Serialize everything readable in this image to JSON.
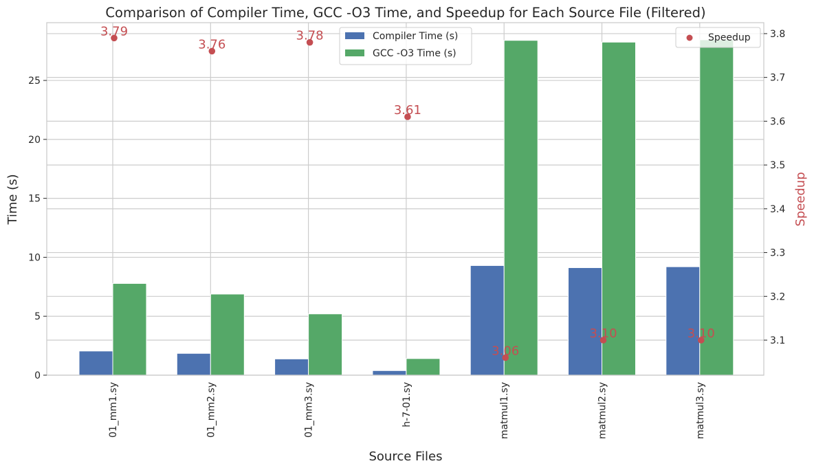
{
  "chart_data": {
    "type": "bar",
    "title": "Comparison of Compiler Time, GCC -O3 Time, and Speedup for Each Source File (Filtered)",
    "xlabel": "Source Files",
    "ylabel": "Time (s)",
    "y2label": "Speedup",
    "categories": [
      "01_mm1.sy",
      "01_mm2.sy",
      "01_mm3.sy",
      "h-7-01.sy",
      "matmul1.sy",
      "matmul2.sy",
      "matmul3.sy"
    ],
    "series": [
      {
        "name": "Compiler Time (s)",
        "color": "#4c72b0",
        "axis": "left",
        "values": [
          2.05,
          1.85,
          1.38,
          0.39,
          9.3,
          9.12,
          9.2
        ]
      },
      {
        "name": "GCC -O3 Time (s)",
        "color": "#55a868",
        "axis": "left",
        "values": [
          7.78,
          6.88,
          5.2,
          1.41,
          28.4,
          28.25,
          28.45
        ]
      },
      {
        "name": "Speedup",
        "color": "#c44e52",
        "axis": "right",
        "type": "scatter",
        "values": [
          3.79,
          3.76,
          3.78,
          3.61,
          3.06,
          3.1,
          3.1
        ],
        "labels": [
          "3.79",
          "3.76",
          "3.78",
          "3.61",
          "3.06",
          "3.10",
          "3.10"
        ]
      }
    ],
    "ylim": [
      0,
      29.9
    ],
    "y2lim": [
      3.02,
      3.825
    ],
    "yticks": [
      "0",
      "5",
      "10",
      "15",
      "20",
      "25"
    ],
    "y2ticks": [
      "3.1",
      "3.2",
      "3.3",
      "3.4",
      "3.5",
      "3.6",
      "3.7",
      "3.8"
    ],
    "grid": true,
    "legend_bars": "top-center",
    "legend_scatter": "top-right"
  }
}
